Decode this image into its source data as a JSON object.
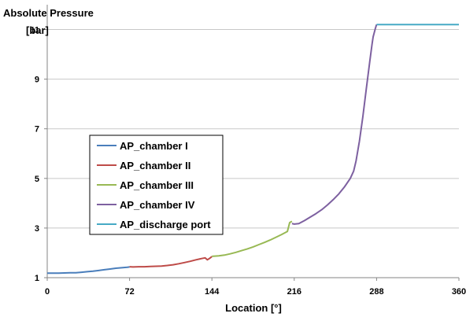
{
  "chart_data": {
    "type": "line",
    "title": "",
    "ylabel_lines": [
      "Absolute Pressure",
      "[bar]"
    ],
    "xlabel": "Location [°]",
    "xlim": [
      0,
      360
    ],
    "ylim": [
      1,
      12
    ],
    "xticks": [
      0,
      72,
      144,
      216,
      288,
      360
    ],
    "yticks": [
      1,
      3,
      5,
      7,
      9,
      11
    ],
    "grid": {
      "horizontal": true,
      "vertical": false
    },
    "legend_placement": "center-left",
    "series": [
      {
        "name": "AP_chamber I",
        "color": "#4a7ebb",
        "points": [
          [
            0,
            1.18
          ],
          [
            5,
            1.18
          ],
          [
            10,
            1.18
          ],
          [
            15,
            1.19
          ],
          [
            20,
            1.2
          ],
          [
            25,
            1.2
          ],
          [
            30,
            1.22
          ],
          [
            35,
            1.24
          ],
          [
            40,
            1.26
          ],
          [
            45,
            1.29
          ],
          [
            50,
            1.32
          ],
          [
            55,
            1.35
          ],
          [
            60,
            1.38
          ],
          [
            65,
            1.4
          ],
          [
            70,
            1.42
          ],
          [
            72,
            1.43
          ]
        ]
      },
      {
        "name": "AP_chamber II",
        "color": "#be4b48",
        "points": [
          [
            72,
            1.44
          ],
          [
            75,
            1.43
          ],
          [
            80,
            1.44
          ],
          [
            85,
            1.44
          ],
          [
            90,
            1.45
          ],
          [
            95,
            1.46
          ],
          [
            100,
            1.47
          ],
          [
            105,
            1.49
          ],
          [
            110,
            1.52
          ],
          [
            115,
            1.56
          ],
          [
            120,
            1.61
          ],
          [
            125,
            1.66
          ],
          [
            130,
            1.72
          ],
          [
            135,
            1.77
          ],
          [
            138,
            1.8
          ],
          [
            140,
            1.72
          ],
          [
            142,
            1.78
          ],
          [
            144,
            1.85
          ]
        ]
      },
      {
        "name": "AP_chamber III",
        "color": "#98b954",
        "points": [
          [
            144,
            1.86
          ],
          [
            150,
            1.88
          ],
          [
            155,
            1.91
          ],
          [
            160,
            1.96
          ],
          [
            165,
            2.02
          ],
          [
            170,
            2.09
          ],
          [
            175,
            2.16
          ],
          [
            180,
            2.24
          ],
          [
            185,
            2.33
          ],
          [
            190,
            2.42
          ],
          [
            195,
            2.52
          ],
          [
            200,
            2.63
          ],
          [
            205,
            2.74
          ],
          [
            210,
            2.86
          ],
          [
            212,
            3.22
          ],
          [
            214,
            3.27
          ]
        ]
      },
      {
        "name": "AP_chamber IV",
        "color": "#7d60a0",
        "points": [
          [
            214,
            3.18
          ],
          [
            216,
            3.16
          ],
          [
            220,
            3.18
          ],
          [
            225,
            3.3
          ],
          [
            230,
            3.44
          ],
          [
            235,
            3.58
          ],
          [
            240,
            3.74
          ],
          [
            245,
            3.93
          ],
          [
            250,
            4.14
          ],
          [
            255,
            4.38
          ],
          [
            260,
            4.66
          ],
          [
            265,
            5.0
          ],
          [
            268,
            5.3
          ],
          [
            270,
            5.7
          ],
          [
            273,
            6.5
          ],
          [
            276,
            7.5
          ],
          [
            279,
            8.6
          ],
          [
            282,
            9.7
          ],
          [
            284,
            10.4
          ],
          [
            285,
            10.7
          ],
          [
            287,
            11.05
          ],
          [
            288,
            11.2
          ]
        ]
      },
      {
        "name": "AP_discharge port",
        "color": "#46aac5",
        "points": [
          [
            288,
            11.2
          ],
          [
            300,
            11.2
          ],
          [
            320,
            11.2
          ],
          [
            340,
            11.2
          ],
          [
            360,
            11.2
          ]
        ]
      }
    ]
  }
}
